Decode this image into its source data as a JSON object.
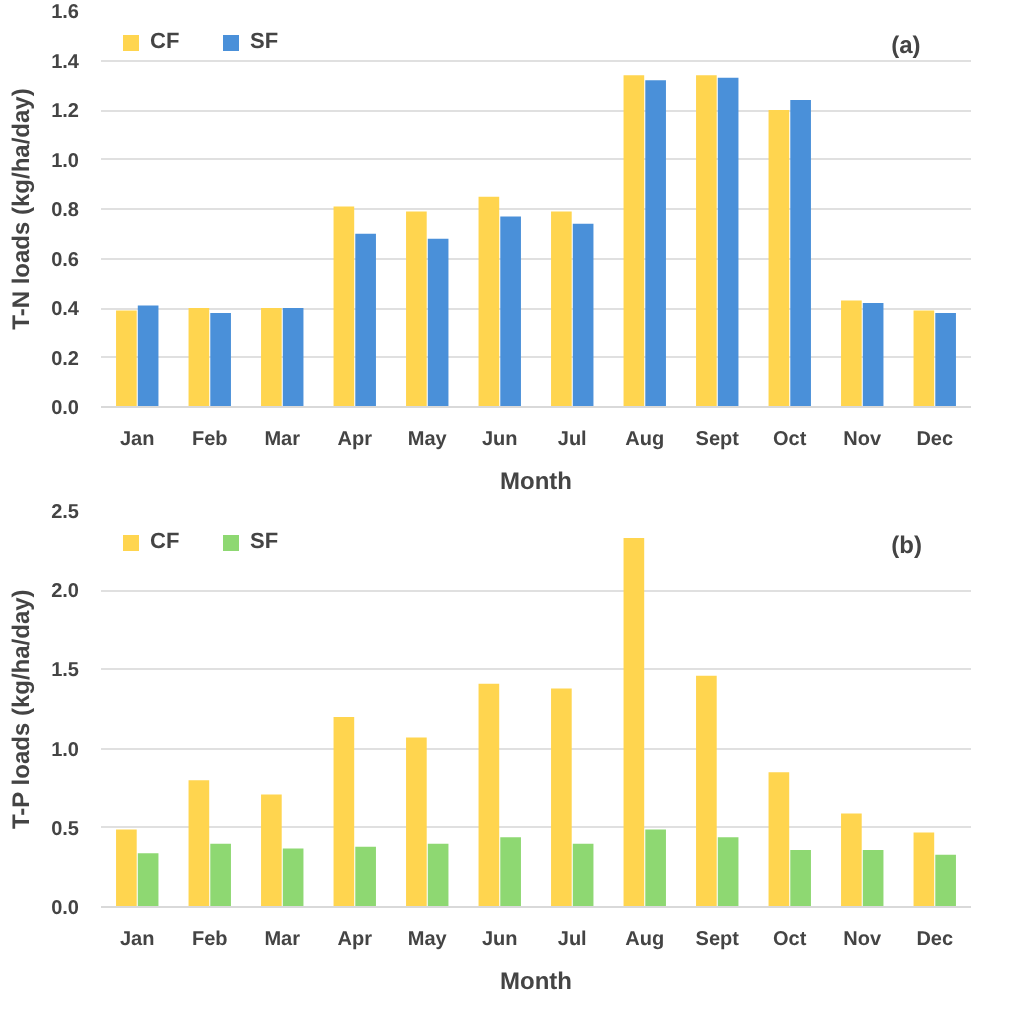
{
  "chart_data": [
    {
      "type": "bar",
      "xlabel": "Month",
      "ylabel": "T-N loads (kg/ha/day)",
      "annotations": [
        "(a)"
      ],
      "categories": [
        "Jan",
        "Feb",
        "Mar",
        "Apr",
        "May",
        "Jun",
        "Jul",
        "Aug",
        "Sept",
        "Oct",
        "Nov",
        "Dec"
      ],
      "series": [
        {
          "name": "CF",
          "color": "#ffd54f",
          "values": [
            0.39,
            0.4,
            0.4,
            0.81,
            0.79,
            0.85,
            0.79,
            1.34,
            1.34,
            1.2,
            0.43,
            0.39
          ]
        },
        {
          "name": "SF",
          "color": "#4a90d9",
          "values": [
            0.41,
            0.38,
            0.4,
            0.7,
            0.68,
            0.77,
            0.74,
            1.32,
            1.33,
            1.24,
            0.42,
            0.38
          ]
        }
      ],
      "ylim": [
        0,
        1.6
      ],
      "yticks": [
        {
          "value": 0,
          "label": "0.0"
        },
        0.2,
        0.4,
        0.6,
        0.8,
        {
          "value": 1,
          "label": "1.0"
        },
        1.2,
        1.4,
        1.6
      ],
      "grid": "y",
      "legend": "top left"
    },
    {
      "type": "bar",
      "xlabel": "Month",
      "ylabel": "T-P loads (kg/ha/day)",
      "annotations": [
        "(b)"
      ],
      "categories": [
        "Jan",
        "Feb",
        "Mar",
        "Apr",
        "May",
        "Jun",
        "Jul",
        "Aug",
        "Sept",
        "Oct",
        "Nov",
        "Dec"
      ],
      "series": [
        {
          "name": "CF",
          "color": "#ffd54f",
          "values": [
            0.49,
            0.8,
            0.71,
            1.2,
            1.07,
            1.41,
            1.38,
            2.33,
            1.46,
            0.85,
            0.59,
            0.47
          ]
        },
        {
          "name": "SF",
          "color": "#8ed872",
          "values": [
            0.34,
            0.4,
            0.37,
            0.38,
            0.4,
            0.44,
            0.4,
            0.49,
            0.44,
            0.36,
            0.36,
            0.33
          ]
        }
      ],
      "ylim": [
        0,
        2.5
      ],
      "yticks": [
        {
          "value": 0,
          "label": "0.0"
        },
        0.5,
        {
          "value": 1,
          "label": "1.0"
        },
        1.5,
        {
          "value": 2,
          "label": "2.0"
        },
        2.5
      ],
      "grid": "y",
      "legend": "top left"
    }
  ]
}
